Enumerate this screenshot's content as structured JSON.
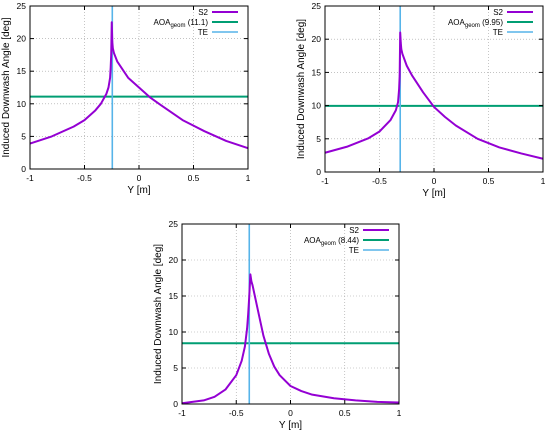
{
  "colors": {
    "s2": "#9400d3",
    "aoa": "#009e73",
    "te": "#56b4e9",
    "frame": "#000000",
    "grid": "#a0a0a0",
    "background": "#ffffff"
  },
  "chart_data": [
    {
      "type": "line",
      "title": "",
      "xlabel": "Y [m]",
      "ylabel": "Induced Downwash Angle [deg]",
      "xlim": [
        -1,
        1
      ],
      "ylim": [
        0,
        25
      ],
      "xticks": [
        -1,
        -0.5,
        0,
        0.5,
        1
      ],
      "xtick_labels": [
        "-1",
        "-0.5",
        "0",
        "0.5",
        "1"
      ],
      "yticks": [
        0,
        5,
        10,
        15,
        20,
        25
      ],
      "ytick_labels": [
        "0",
        "5",
        "10",
        "15",
        "20",
        "25"
      ],
      "grid": true,
      "legend": "top-right",
      "series": [
        {
          "name": "S2",
          "x": [
            -1.0,
            -0.8,
            -0.6,
            -0.5,
            -0.4,
            -0.35,
            -0.3,
            -0.28,
            -0.265,
            -0.26,
            -0.255,
            -0.25,
            -0.245,
            -0.24,
            -0.23,
            -0.2,
            -0.1,
            0.0,
            0.1,
            0.2,
            0.4,
            0.6,
            0.8,
            1.0
          ],
          "y": [
            3.9,
            5.0,
            6.5,
            7.5,
            9.0,
            10.0,
            11.5,
            12.5,
            14.0,
            15.5,
            17.5,
            22.5,
            19.5,
            18.5,
            17.8,
            16.5,
            14.0,
            12.5,
            11.0,
            9.8,
            7.5,
            5.8,
            4.3,
            3.2
          ]
        },
        {
          "name": "AOA",
          "subscript": "geom",
          "value_label": "(11.1)",
          "y": 11.1
        },
        {
          "name": "TE",
          "x": -0.245
        }
      ]
    },
    {
      "type": "line",
      "title": "",
      "xlabel": "Y [m]",
      "ylabel": "Induced Downwash Angle [deg]",
      "xlim": [
        -1,
        1
      ],
      "ylim": [
        0,
        25
      ],
      "xticks": [
        -1,
        -0.5,
        0,
        0.5,
        1
      ],
      "xtick_labels": [
        "-1",
        "-0.5",
        "0",
        "0.5",
        "1"
      ],
      "yticks": [
        0,
        5,
        10,
        15,
        20,
        25
      ],
      "ytick_labels": [
        "0",
        "5",
        "10",
        "15",
        "20",
        "25"
      ],
      "grid": true,
      "legend": "top-right",
      "series": [
        {
          "name": "S2",
          "x": [
            -1.0,
            -0.8,
            -0.6,
            -0.5,
            -0.4,
            -0.35,
            -0.33,
            -0.32,
            -0.315,
            -0.31,
            -0.305,
            -0.3,
            -0.29,
            -0.25,
            -0.2,
            -0.1,
            0.0,
            0.1,
            0.2,
            0.4,
            0.6,
            0.8,
            1.0
          ],
          "y": [
            2.9,
            3.8,
            5.1,
            6.1,
            7.8,
            9.3,
            10.5,
            12.5,
            14.5,
            21.0,
            19.5,
            18.5,
            17.8,
            16.0,
            14.5,
            12.0,
            9.8,
            8.3,
            7.0,
            5.0,
            3.7,
            2.8,
            2.0
          ]
        },
        {
          "name": "AOA",
          "subscript": "geom",
          "value_label": "(9.95)",
          "y": 9.95
        },
        {
          "name": "TE",
          "x": -0.31
        }
      ]
    },
    {
      "type": "line",
      "title": "",
      "xlabel": "Y [m]",
      "ylabel": "Induced Downwash Angle [deg]",
      "xlim": [
        -1,
        1
      ],
      "ylim": [
        0,
        25
      ],
      "xticks": [
        -1,
        -0.5,
        0,
        0.5,
        1
      ],
      "xtick_labels": [
        "-1",
        "-0.5",
        "0",
        "0.5",
        "1"
      ],
      "yticks": [
        0,
        5,
        10,
        15,
        20,
        25
      ],
      "ytick_labels": [
        "0",
        "5",
        "10",
        "15",
        "20",
        "25"
      ],
      "grid": true,
      "legend": "top-right",
      "series": [
        {
          "name": "S2",
          "x": [
            -1.0,
            -0.8,
            -0.7,
            -0.6,
            -0.5,
            -0.45,
            -0.42,
            -0.4,
            -0.39,
            -0.38,
            -0.37,
            -0.36,
            -0.35,
            -0.3,
            -0.25,
            -0.2,
            -0.15,
            -0.1,
            0.0,
            0.1,
            0.2,
            0.4,
            0.6,
            0.8,
            1.0
          ],
          "y": [
            0.1,
            0.5,
            1.0,
            2.0,
            4.0,
            6.0,
            8.0,
            10.5,
            12.5,
            15.0,
            18.0,
            17.0,
            16.5,
            13.0,
            9.5,
            7.0,
            5.2,
            4.0,
            2.5,
            1.8,
            1.3,
            0.8,
            0.5,
            0.3,
            0.2
          ]
        },
        {
          "name": "AOA",
          "subscript": "geom",
          "value_label": "(8.44)",
          "y": 8.44
        },
        {
          "name": "TE",
          "x": -0.38
        }
      ]
    }
  ]
}
